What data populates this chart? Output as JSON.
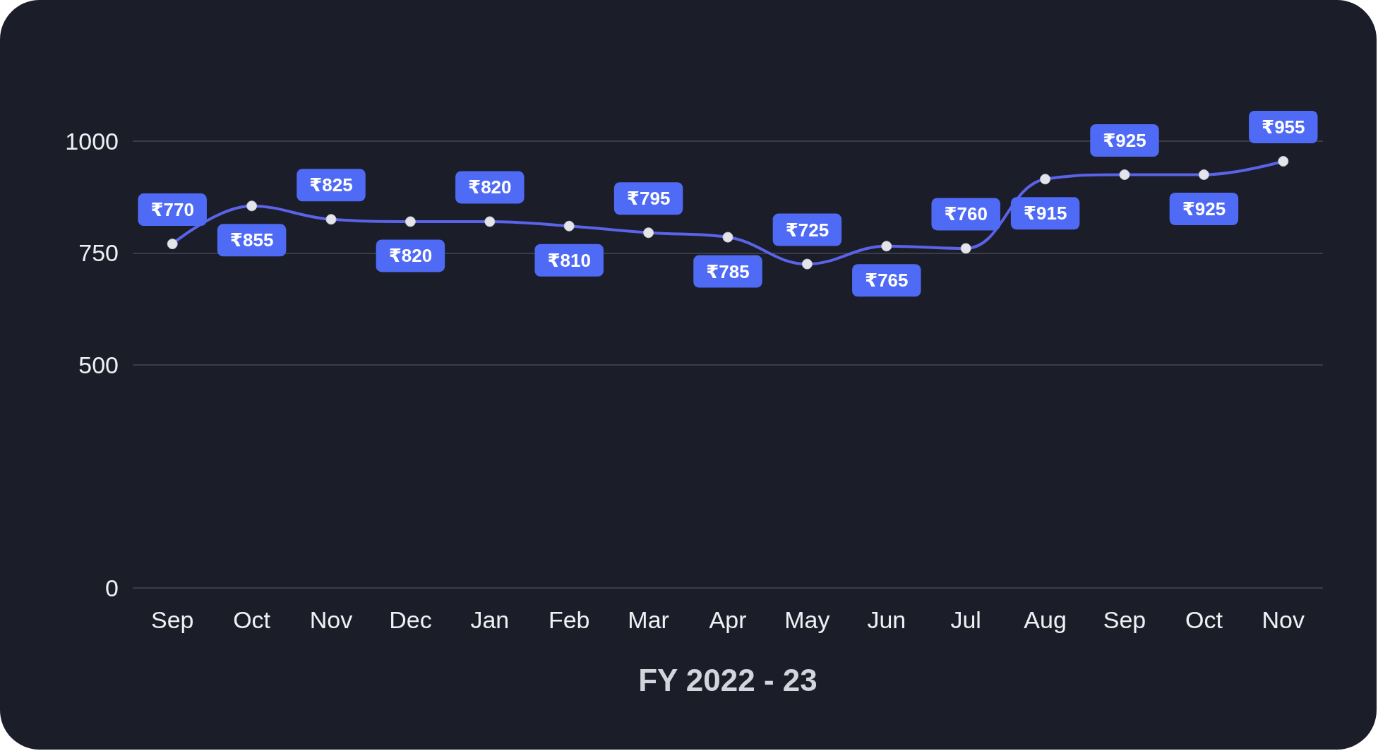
{
  "chart_data": {
    "type": "line",
    "xlabel": "FY 2022 - 23",
    "categories": [
      "Sep",
      "Oct",
      "Nov",
      "Dec",
      "Jan",
      "Feb",
      "Mar",
      "Apr",
      "May",
      "Jun",
      "Jul",
      "Aug",
      "Sep",
      "Oct",
      "Nov"
    ],
    "series": [
      {
        "color": "#5b63e8",
        "values": [
          770,
          855,
          825,
          820,
          820,
          810,
          795,
          785,
          725,
          765,
          760,
          915,
          925,
          925,
          955
        ],
        "value_labels": [
          "₹770",
          "₹855",
          "₹825",
          "₹820",
          "₹820",
          "₹810",
          "₹795",
          "₹785",
          "₹725",
          "₹765",
          "₹760",
          "₹915",
          "₹925",
          "₹925",
          "₹955"
        ]
      }
    ],
    "ylim": [
      0,
      1000
    ],
    "yticks": [
      0,
      500,
      750,
      1000
    ],
    "grid": "y",
    "marker": "circle"
  }
}
